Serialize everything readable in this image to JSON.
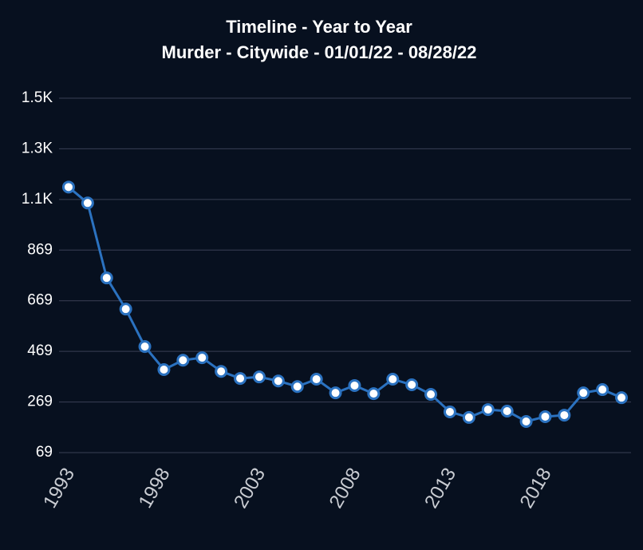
{
  "chart_data": {
    "type": "line",
    "title": "Timeline - Year to Year",
    "subtitle": "Murder - Citywide - 01/01/22 - 08/28/22",
    "x": [
      1993,
      1994,
      1995,
      1996,
      1997,
      1998,
      1999,
      2000,
      2001,
      2002,
      2003,
      2004,
      2005,
      2006,
      2007,
      2008,
      2009,
      2010,
      2011,
      2012,
      2013,
      2014,
      2015,
      2016,
      2017,
      2018,
      2019,
      2020,
      2021,
      2022
    ],
    "series": [
      {
        "color": "#2b72c0",
        "values": [
          1118,
          1055,
          759,
          636,
          488,
          397,
          434,
          444,
          390,
          362,
          368,
          352,
          330,
          359,
          305,
          334,
          302,
          359,
          337,
          299,
          230,
          208,
          239,
          233,
          192,
          211,
          217,
          305,
          318,
          286
        ]
      }
    ],
    "xlim": [
      1992.5,
      2022.5
    ],
    "xticks": [
      1993,
      1998,
      2003,
      2008,
      2013,
      2018
    ],
    "ylim": [
      69,
      1469
    ],
    "yticks": [
      69,
      269,
      469,
      669,
      869,
      {
        "value": 1069,
        "label": "1.1K"
      },
      {
        "value": 1269,
        "label": "1.3K"
      },
      {
        "value": 1469,
        "label": "1.5K"
      }
    ],
    "grid": true
  }
}
